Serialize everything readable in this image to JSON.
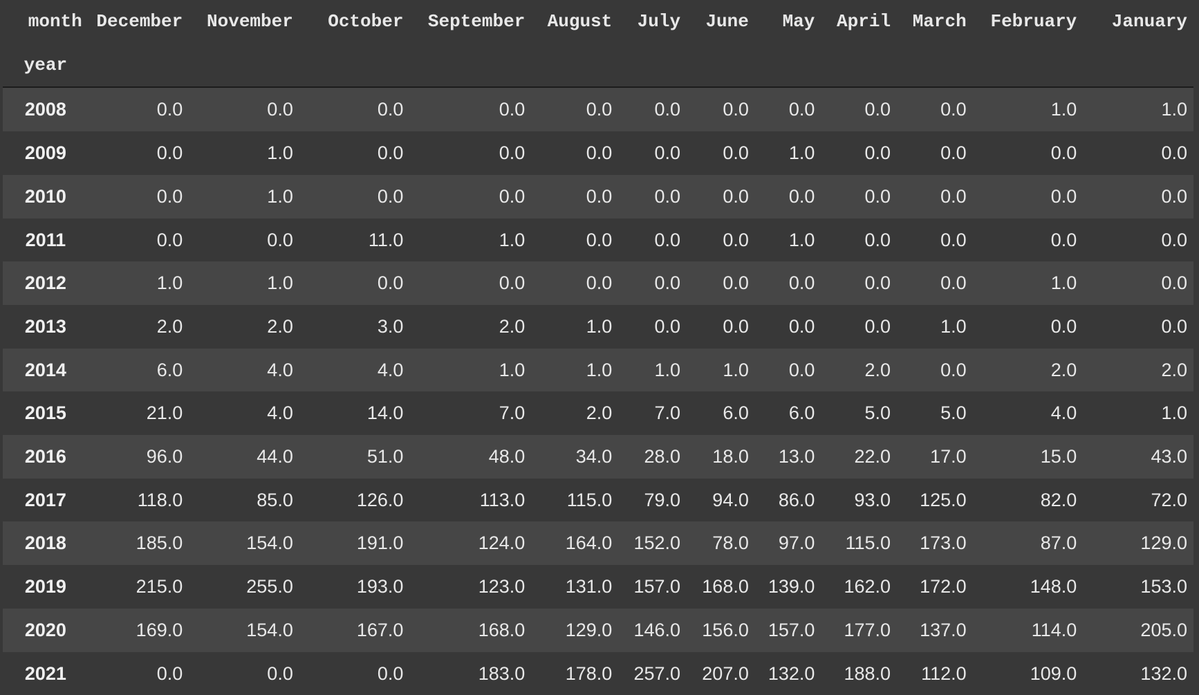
{
  "table": {
    "column_axis_label": "month",
    "row_axis_label": "year",
    "columns": [
      "December",
      "November",
      "October",
      "September",
      "August",
      "July",
      "June",
      "May",
      "April",
      "March",
      "February",
      "January"
    ],
    "rows": [
      {
        "year": "2008",
        "values": [
          "0.0",
          "0.0",
          "0.0",
          "0.0",
          "0.0",
          "0.0",
          "0.0",
          "0.0",
          "0.0",
          "0.0",
          "1.0",
          "1.0"
        ]
      },
      {
        "year": "2009",
        "values": [
          "0.0",
          "1.0",
          "0.0",
          "0.0",
          "0.0",
          "0.0",
          "0.0",
          "1.0",
          "0.0",
          "0.0",
          "0.0",
          "0.0"
        ]
      },
      {
        "year": "2010",
        "values": [
          "0.0",
          "1.0",
          "0.0",
          "0.0",
          "0.0",
          "0.0",
          "0.0",
          "0.0",
          "0.0",
          "0.0",
          "0.0",
          "0.0"
        ]
      },
      {
        "year": "2011",
        "values": [
          "0.0",
          "0.0",
          "11.0",
          "1.0",
          "0.0",
          "0.0",
          "0.0",
          "1.0",
          "0.0",
          "0.0",
          "0.0",
          "0.0"
        ]
      },
      {
        "year": "2012",
        "values": [
          "1.0",
          "1.0",
          "0.0",
          "0.0",
          "0.0",
          "0.0",
          "0.0",
          "0.0",
          "0.0",
          "0.0",
          "1.0",
          "0.0"
        ]
      },
      {
        "year": "2013",
        "values": [
          "2.0",
          "2.0",
          "3.0",
          "2.0",
          "1.0",
          "0.0",
          "0.0",
          "0.0",
          "0.0",
          "1.0",
          "0.0",
          "0.0"
        ]
      },
      {
        "year": "2014",
        "values": [
          "6.0",
          "4.0",
          "4.0",
          "1.0",
          "1.0",
          "1.0",
          "1.0",
          "0.0",
          "2.0",
          "0.0",
          "2.0",
          "2.0"
        ]
      },
      {
        "year": "2015",
        "values": [
          "21.0",
          "4.0",
          "14.0",
          "7.0",
          "2.0",
          "7.0",
          "6.0",
          "6.0",
          "5.0",
          "5.0",
          "4.0",
          "1.0"
        ]
      },
      {
        "year": "2016",
        "values": [
          "96.0",
          "44.0",
          "51.0",
          "48.0",
          "34.0",
          "28.0",
          "18.0",
          "13.0",
          "22.0",
          "17.0",
          "15.0",
          "43.0"
        ]
      },
      {
        "year": "2017",
        "values": [
          "118.0",
          "85.0",
          "126.0",
          "113.0",
          "115.0",
          "79.0",
          "94.0",
          "86.0",
          "93.0",
          "125.0",
          "82.0",
          "72.0"
        ]
      },
      {
        "year": "2018",
        "values": [
          "185.0",
          "154.0",
          "191.0",
          "124.0",
          "164.0",
          "152.0",
          "78.0",
          "97.0",
          "115.0",
          "173.0",
          "87.0",
          "129.0"
        ]
      },
      {
        "year": "2019",
        "values": [
          "215.0",
          "255.0",
          "193.0",
          "123.0",
          "131.0",
          "157.0",
          "168.0",
          "139.0",
          "162.0",
          "172.0",
          "148.0",
          "153.0"
        ]
      },
      {
        "year": "2020",
        "values": [
          "169.0",
          "154.0",
          "167.0",
          "168.0",
          "129.0",
          "146.0",
          "156.0",
          "157.0",
          "177.0",
          "137.0",
          "114.0",
          "205.0"
        ]
      },
      {
        "year": "2021",
        "values": [
          "0.0",
          "0.0",
          "0.0",
          "183.0",
          "178.0",
          "257.0",
          "207.0",
          "132.0",
          "188.0",
          "112.0",
          "109.0",
          "132.0"
        ]
      }
    ]
  },
  "theme": {
    "background": "#383838",
    "row_stripe": "#464646",
    "text": "#e8e8e8"
  }
}
